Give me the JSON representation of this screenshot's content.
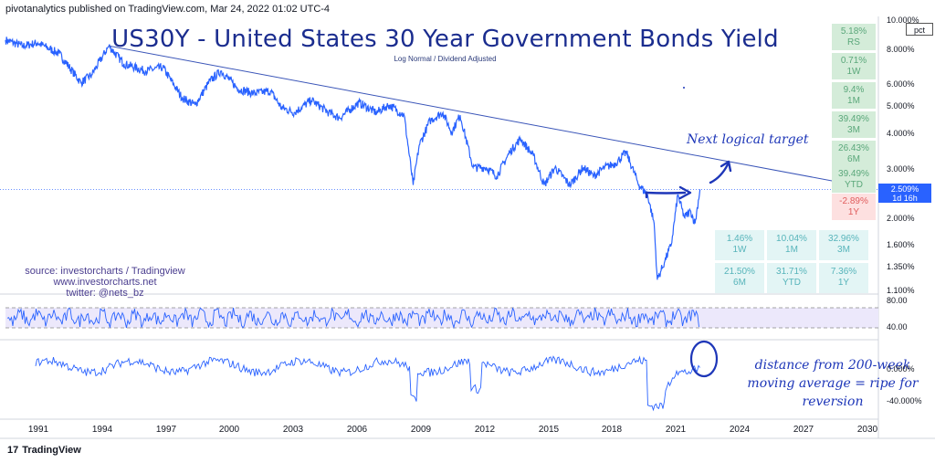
{
  "header": {
    "publisher": "pivotanalytics published on TradingView.com, Mar 24, 2022 01:02 UTC-4"
  },
  "title": "US30Y - United States 30 Year Government Bonds Yield",
  "subtitle": "Log Normal / Dividend Adjusted",
  "annotations": {
    "target": "Next logical target",
    "distance_lines": [
      "distance from 200-week",
      "moving average = ripe for",
      "reversion"
    ]
  },
  "source_lines": [
    "source: investorcharts / Tradingview",
    "www.investorcharts.net",
    "twitter: @nets_bz"
  ],
  "branding": {
    "logo_text": "TradingView",
    "logo_mark": "17"
  },
  "axis_unit": "pct",
  "last_price": {
    "value": "2.509%",
    "time": "1d 16h"
  },
  "colors": {
    "series": "#2962ff",
    "title": "#1b2d8f",
    "green_box": "#d4ecd9",
    "red_box": "#fde0e0",
    "perf_box": "#e3f5f5",
    "rsi_band": "#ece8fb"
  },
  "right_boxes": [
    {
      "value": "5.18%",
      "period": "RS",
      "tone": "green"
    },
    {
      "value": "0.71%",
      "period": "1W",
      "tone": "green"
    },
    {
      "value": "9.4%",
      "period": "1M",
      "tone": "green"
    },
    {
      "value": "39.49%",
      "period": "3M",
      "tone": "green"
    },
    {
      "value": "26.43%",
      "period": "6M",
      "tone": "green"
    },
    {
      "value": "39.49%",
      "period": "YTD",
      "tone": "green"
    },
    {
      "value": "-2.89%",
      "period": "1Y",
      "tone": "red"
    }
  ],
  "perf_table": [
    {
      "value": "1.46%",
      "period": "1W"
    },
    {
      "value": "10.04%",
      "period": "1M"
    },
    {
      "value": "32.96%",
      "period": "3M"
    },
    {
      "value": "21.50%",
      "period": "6M"
    },
    {
      "value": "31.71%",
      "period": "YTD"
    },
    {
      "value": "7.36%",
      "period": "1Y"
    }
  ],
  "chart_data": {
    "type": "line",
    "title": "US30Y - United States 30 Year Government Bonds Yield",
    "yscale": "log",
    "ylim": [
      1.1,
      10.0
    ],
    "y_ticks": [
      "10.000%",
      "8.000%",
      "6.000%",
      "5.000%",
      "4.000%",
      "3.000%",
      "2.509%",
      "2.000%",
      "1.600%",
      "1.350%",
      "1.100%"
    ],
    "x_ticks": [
      "1991",
      "1994",
      "1997",
      "2000",
      "2003",
      "2006",
      "2009",
      "2012",
      "2015",
      "2018",
      "2021",
      "2024",
      "2027",
      "2030"
    ],
    "series": [
      {
        "name": "US30Y",
        "x": [
          1990.0,
          1990.8,
          1991.5,
          1992.5,
          1993.5,
          1994.0,
          1994.8,
          1995.5,
          1996.5,
          1997.3,
          1998.2,
          1998.8,
          1999.5,
          2000.0,
          2000.8,
          2001.5,
          2002.3,
          2002.8,
          2003.4,
          2004.2,
          2005.0,
          2005.5,
          2006.4,
          2007.2,
          2007.8,
          2008.5,
          2008.92,
          2009.2,
          2009.7,
          2010.3,
          2010.7,
          2011.1,
          2011.7,
          2012.3,
          2012.8,
          2013.4,
          2013.9,
          2014.5,
          2015.0,
          2015.5,
          2016.2,
          2016.8,
          2017.3,
          2017.8,
          2018.3,
          2018.8,
          2019.4,
          2019.8,
          2020.1,
          2020.25,
          2020.6,
          2020.9,
          2021.2,
          2021.5,
          2021.8,
          2022.0,
          2022.23
        ],
        "values": [
          8.5,
          8.1,
          8.3,
          7.6,
          6.0,
          6.4,
          8.1,
          7.0,
          6.6,
          6.8,
          5.3,
          5.0,
          6.1,
          6.6,
          5.7,
          5.5,
          5.6,
          4.9,
          4.7,
          5.2,
          4.7,
          4.5,
          5.1,
          4.7,
          5.0,
          4.6,
          2.6,
          3.6,
          4.4,
          4.7,
          4.0,
          4.6,
          3.0,
          3.0,
          2.8,
          3.4,
          3.8,
          3.3,
          2.6,
          3.0,
          2.6,
          3.0,
          2.8,
          3.0,
          3.1,
          3.4,
          2.6,
          2.4,
          1.9,
          1.2,
          1.4,
          1.6,
          2.4,
          2.0,
          2.1,
          1.9,
          2.509
        ]
      }
    ],
    "trendline": {
      "from": {
        "x": 1994.8,
        "y": 8.1
      },
      "to": {
        "x": 2030.0,
        "y": 2.55
      }
    },
    "rsi_panel": {
      "ticks": [
        "80.00",
        "40.00"
      ],
      "band": [
        30,
        70
      ]
    },
    "deviation_panel": {
      "ticks": [
        "0.000%",
        "-40.000%"
      ]
    }
  }
}
